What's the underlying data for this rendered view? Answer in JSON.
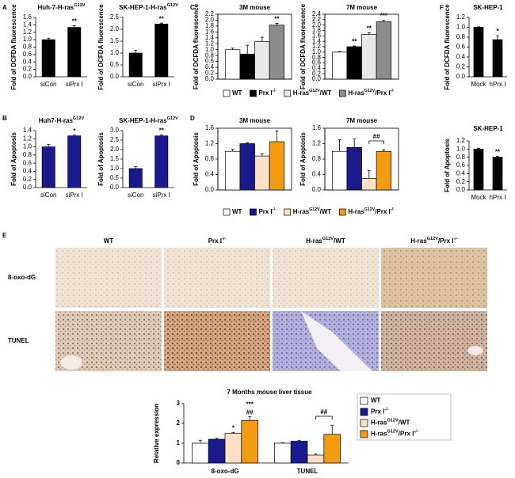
{
  "panel_labels": [
    "A",
    "B",
    "C",
    "D",
    "E",
    "F"
  ],
  "micrographs": {
    "columns": [
      [
        "WT"
      ],
      [
        "Prx I",
        "-/-"
      ],
      [
        "H-ras",
        "G12V",
        "/WT"
      ],
      [
        "H-ras",
        "G12V",
        "/Prx I",
        "-/-"
      ]
    ],
    "rows": [
      "8-oxo-dG",
      "TUNEL"
    ]
  },
  "chart_data": [
    {
      "type": "bar",
      "title": [
        "Huh-7-H-ras",
        "G12V"
      ],
      "y_label": "Fold of DCFDA fluorescence",
      "categories": [
        "siCon",
        "siPrx I"
      ],
      "values": [
        1.0,
        1.33
      ],
      "errors": [
        0.04,
        0.05
      ],
      "colors": [
        "#000000",
        "#000000"
      ],
      "annotations": [
        [],
        [
          "**"
        ]
      ],
      "ylim": [
        0,
        1.6
      ],
      "yticks": [
        {
          "value": 0,
          "label": "0.0"
        },
        {
          "value": 0.2,
          "label": "0.2"
        },
        {
          "value": 0.4,
          "label": "0.4"
        },
        {
          "value": 0.6,
          "label": "0.6"
        },
        {
          "value": 0.8,
          "label": "0.8"
        },
        {
          "value": 1.0,
          "label": "1.0"
        },
        {
          "value": 1.2,
          "label": "1.2"
        },
        {
          "value": 1.4,
          "label": "1.4"
        },
        {
          "value": 1.6,
          "label": "1.6"
        }
      ]
    },
    {
      "type": "bar",
      "title": [
        "SK-HEP-1-H-ras",
        "G12V"
      ],
      "y_label": "Fold of DCFDA fluorescence",
      "categories": [
        "siCon",
        "siPrx I"
      ],
      "values": [
        1.0,
        2.22
      ],
      "errors": [
        0.12,
        0.04
      ],
      "colors": [
        "#000000",
        "#000000"
      ],
      "annotations": [
        [],
        [
          "**"
        ]
      ],
      "ylim": [
        0,
        2.5
      ],
      "yticks": [
        {
          "value": 0,
          "label": "0.0"
        },
        {
          "value": 0.5,
          "label": "0.5"
        },
        {
          "value": 1.0,
          "label": "1.0"
        },
        {
          "value": 1.5,
          "label": "1.5"
        },
        {
          "value": 2.0,
          "label": "2.0"
        },
        {
          "value": 2.5,
          "label": "2.5"
        }
      ]
    },
    {
      "type": "bar",
      "title": [
        "Huh7-H-ras",
        "G12V"
      ],
      "y_label": "Fold of Apoptosis",
      "categories": [
        "siCon",
        "siPrx I"
      ],
      "values": [
        1.0,
        1.27
      ],
      "errors": [
        0.06,
        0.02
      ],
      "colors": [
        "#1a1a8c",
        "#1a1a8c"
      ],
      "annotations": [
        [],
        [
          "*"
        ]
      ],
      "ylim": [
        0,
        1.4
      ],
      "yticks": [
        {
          "value": 0,
          "label": "0.0"
        },
        {
          "value": 0.2,
          "label": "0.2"
        },
        {
          "value": 0.4,
          "label": "0.4"
        },
        {
          "value": 0.6,
          "label": "0.6"
        },
        {
          "value": 0.8,
          "label": "0.8"
        },
        {
          "value": 1.0,
          "label": "1.0"
        },
        {
          "value": 1.2,
          "label": "1.2"
        },
        {
          "value": 1.4,
          "label": "1.4"
        }
      ]
    },
    {
      "type": "bar",
      "title": [
        "SK-HEP-1-H-ras",
        "G12V"
      ],
      "y_label": "Fold of Apoptosis",
      "categories": [
        "siCon",
        "siPrx I"
      ],
      "values": [
        1.0,
        2.72
      ],
      "errors": [
        0.1,
        0.05
      ],
      "colors": [
        "#1a1a8c",
        "#1a1a8c"
      ],
      "annotations": [
        [],
        [
          "**"
        ]
      ],
      "ylim": [
        0,
        3.0
      ],
      "yticks": [
        {
          "value": 0,
          "label": "0.0"
        },
        {
          "value": 0.5,
          "label": "0.5"
        },
        {
          "value": 1.0,
          "label": "1.0"
        },
        {
          "value": 1.5,
          "label": "1.5"
        },
        {
          "value": 2.0,
          "label": "2.0"
        },
        {
          "value": 2.5,
          "label": "2.5"
        },
        {
          "value": 3.0,
          "label": "3.0"
        }
      ]
    },
    {
      "type": "bar",
      "title": [
        "3M mouse"
      ],
      "y_label": "Fold of DCFDA fluorescence",
      "series": [
        {
          "name": [
            "WT"
          ],
          "color": "#ffffff",
          "values": [
            1.0
          ],
          "errors": [
            0.05
          ],
          "annotations": [
            []
          ]
        },
        {
          "name": [
            "Prx I",
            "-/-"
          ],
          "color": "#000000",
          "values": [
            0.85
          ],
          "errors": [
            0.3
          ],
          "annotations": [
            []
          ]
        },
        {
          "name": [
            "H-ras",
            "G12V",
            "/WT"
          ],
          "color": "#e8e8e8",
          "values": [
            1.27
          ],
          "errors": [
            0.15
          ],
          "annotations": [
            []
          ]
        },
        {
          "name": [
            "H-ras",
            "G12V",
            "/Prx I",
            "-/-"
          ],
          "color": "#8c8c8c",
          "values": [
            1.83
          ],
          "errors": [
            0.06
          ],
          "annotations": [
            [
              "**"
            ]
          ]
        }
      ],
      "ylim": [
        0,
        2.2
      ],
      "yticks": [
        {
          "value": 0,
          "label": "0.0"
        },
        {
          "value": 0.2,
          "label": "0.2"
        },
        {
          "value": 0.4,
          "label": "0.4"
        },
        {
          "value": 0.6,
          "label": "0.6"
        },
        {
          "value": 0.8,
          "label": "0.8"
        },
        {
          "value": 1.0,
          "label": "1.0"
        },
        {
          "value": 1.2,
          "label": "1.2"
        },
        {
          "value": 1.4,
          "label": "1.4"
        },
        {
          "value": 1.6,
          "label": "1.6"
        },
        {
          "value": 1.8,
          "label": "1.8"
        },
        {
          "value": 2.0,
          "label": "2.0"
        },
        {
          "value": 2.2,
          "label": "2.2"
        }
      ]
    },
    {
      "type": "bar",
      "title": [
        "7M mouse"
      ],
      "y_label": "Fold of DCFDA fluorescence",
      "series": [
        {
          "color": "#ffffff",
          "values": [
            1.0
          ],
          "errors": [
            0.02
          ],
          "annotations": [
            []
          ]
        },
        {
          "color": "#000000",
          "values": [
            1.2
          ],
          "errors": [
            0.03
          ],
          "annotations": [
            [
              "**"
            ]
          ]
        },
        {
          "color": "#e8e8e8",
          "values": [
            1.65
          ],
          "errors": [
            0.06
          ],
          "annotations": [
            [
              "**"
            ]
          ]
        },
        {
          "color": "#8c8c8c",
          "values": [
            2.12
          ],
          "errors": [
            0.06
          ],
          "annotations": [
            [
              "***"
            ]
          ]
        }
      ],
      "ylim": [
        0,
        2.4
      ],
      "yticks": [
        {
          "value": 0,
          "label": "0.0"
        },
        {
          "value": 0.2,
          "label": "0.2"
        },
        {
          "value": 0.4,
          "label": "0.4"
        },
        {
          "value": 0.6,
          "label": "0.6"
        },
        {
          "value": 0.8,
          "label": "0.8"
        },
        {
          "value": 1.0,
          "label": "1.0"
        },
        {
          "value": 1.2,
          "label": "1.2"
        },
        {
          "value": 1.4,
          "label": "1.4"
        },
        {
          "value": 1.6,
          "label": "1.6"
        },
        {
          "value": 1.8,
          "label": "1.8"
        },
        {
          "value": 2.0,
          "label": "2.0"
        },
        {
          "value": 2.2,
          "label": "2.2"
        },
        {
          "value": 2.4,
          "label": "2.4"
        }
      ]
    },
    {
      "type": "bar",
      "title": [
        "3M mouse"
      ],
      "y_label": "Fold of Apoptosis",
      "series": [
        {
          "name": [
            "WT"
          ],
          "color": "#ffffff",
          "values": [
            1.0
          ],
          "errors": [
            0.05
          ],
          "annotations": [
            []
          ]
        },
        {
          "name": [
            "Prx I",
            "-/-"
          ],
          "color": "#1a1a8c",
          "values": [
            1.2
          ],
          "errors": [
            0.02
          ],
          "annotations": [
            []
          ]
        },
        {
          "name": [
            "H-ras",
            "G12V",
            "/WT"
          ],
          "color": "#fde0c5",
          "values": [
            0.88
          ],
          "errors": [
            0.06
          ],
          "annotations": [
            []
          ]
        },
        {
          "name": [
            "H-ras",
            "G12V",
            "/Prx I",
            "-/-"
          ],
          "color": "#f39c12",
          "values": [
            1.25
          ],
          "errors": [
            0.28
          ],
          "annotations": [
            []
          ]
        }
      ],
      "ylim": [
        0,
        1.6
      ],
      "yticks": [
        {
          "value": 0,
          "label": "0.0"
        },
        {
          "value": 0.4,
          "label": "0.4"
        },
        {
          "value": 0.8,
          "label": "0.8"
        },
        {
          "value": 1.2,
          "label": "1.2"
        },
        {
          "value": 1.6,
          "label": "1.6"
        }
      ]
    },
    {
      "type": "bar",
      "title": [
        "7M mouse"
      ],
      "y_label": "Fold of Apoptosis",
      "series": [
        {
          "color": "#ffffff",
          "values": [
            1.0
          ],
          "errors": [
            0.3
          ],
          "annotations": [
            []
          ]
        },
        {
          "color": "#1a1a8c",
          "values": [
            1.1
          ],
          "errors": [
            0.22
          ],
          "annotations": [
            []
          ]
        },
        {
          "color": "#fde0c5",
          "values": [
            0.3
          ],
          "errors": [
            0.2
          ],
          "annotations": [
            []
          ]
        },
        {
          "color": "#f39c12",
          "values": [
            1.0
          ],
          "errors": [
            0.04
          ],
          "annotations": [
            []
          ]
        }
      ],
      "bracket_label": "##",
      "ylim": [
        0,
        1.6
      ],
      "yticks": [
        {
          "value": 0,
          "label": "0.0"
        },
        {
          "value": 0.4,
          "label": "0.4"
        },
        {
          "value": 0.8,
          "label": "0.8"
        },
        {
          "value": 1.2,
          "label": "1.2"
        },
        {
          "value": 1.6,
          "label": "1.6"
        }
      ]
    },
    {
      "type": "bar",
      "title": [
        "SK-HEP-1"
      ],
      "y_label": "Fold of DCFDA fluorescence",
      "categories": [
        "Mock",
        "hPrx I"
      ],
      "values": [
        1.0,
        0.75
      ],
      "errors": [
        0.01,
        0.08
      ],
      "colors": [
        "#000000",
        "#000000"
      ],
      "annotations": [
        [],
        [
          "*"
        ]
      ],
      "ylim": [
        0,
        1.2
      ],
      "yticks": [
        {
          "value": 0,
          "label": "0.0"
        },
        {
          "value": 0.2,
          "label": "0.2"
        },
        {
          "value": 0.4,
          "label": "0.4"
        },
        {
          "value": 0.6,
          "label": "0.6"
        },
        {
          "value": 0.8,
          "label": "0.8"
        },
        {
          "value": 1.0,
          "label": "1.0"
        },
        {
          "value": 1.2,
          "label": "1.2"
        }
      ]
    },
    {
      "type": "bar",
      "title": [
        "SK-HEP-1"
      ],
      "y_label": "Fold of Apoptosis",
      "categories": [
        "Mock",
        "hPrx I"
      ],
      "values": [
        1.0,
        0.8
      ],
      "errors": [
        0.02,
        0.02
      ],
      "colors": [
        "#000000",
        "#000000"
      ],
      "annotations": [
        [],
        [
          "**"
        ]
      ],
      "ylim": [
        0,
        1.2
      ],
      "yticks": [
        {
          "value": 0,
          "label": "0.0"
        },
        {
          "value": 0.2,
          "label": "0.2"
        },
        {
          "value": 0.4,
          "label": "0.4"
        },
        {
          "value": 0.6,
          "label": "0.6"
        },
        {
          "value": 0.8,
          "label": "0.8"
        },
        {
          "value": 1.0,
          "label": "1.0"
        },
        {
          "value": 1.2,
          "label": "1.2"
        }
      ]
    },
    {
      "type": "bar",
      "title": [
        "7 Months mouse liver tissue"
      ],
      "y_label": "Relative expression",
      "categories": [
        "8-oxo-dG",
        "TUNEL"
      ],
      "series": [
        {
          "name": [
            "WT"
          ],
          "color": "#ffffff",
          "values": [
            1.0,
            1.0
          ],
          "errors": [
            0.15,
            0.02
          ],
          "annotations": [
            [],
            []
          ]
        },
        {
          "name": [
            "Prx I",
            "-/-"
          ],
          "color": "#1a1a8c",
          "values": [
            1.2,
            1.1
          ],
          "errors": [
            0.05,
            0.05
          ],
          "annotations": [
            [],
            []
          ]
        },
        {
          "name": [
            "H-ras",
            "G12V",
            "/WT"
          ],
          "color": "#fde0c5",
          "values": [
            1.5,
            0.4
          ],
          "errors": [
            0.05,
            0.05
          ],
          "annotations": [
            [
              "*"
            ],
            []
          ]
        },
        {
          "name": [
            "H-ras",
            "G12V",
            "/Prx I",
            "-/-"
          ],
          "color": "#f39c12",
          "values": [
            2.15,
            1.45
          ],
          "errors": [
            0.2,
            0.45
          ],
          "annotations": [
            [
              "***",
              "##"
            ],
            []
          ]
        }
      ],
      "bracket_label": "##",
      "ylim": [
        0,
        3
      ],
      "yticks": [
        0,
        1,
        2,
        3
      ]
    }
  ]
}
